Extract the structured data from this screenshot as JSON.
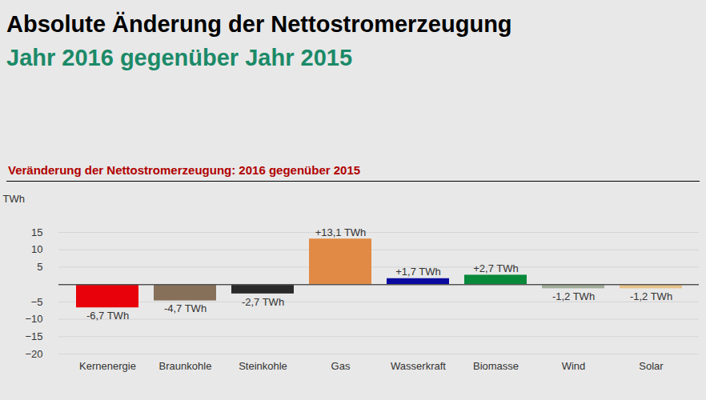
{
  "chart_data": {
    "type": "bar",
    "title": "Absolute Änderung der Nettostromerzeugung",
    "subtitle": "Jahr 2016 gegenüber Jahr 2015",
    "plot_title": "Veränderung der Nettostromerzeugung: 2016 gegenüber 2015",
    "y_label": "TWh",
    "categories": [
      "Kernenergie",
      "Braunkohle",
      "Steinkohle",
      "Gas",
      "Wasserkraft",
      "Biomasse",
      "Wind",
      "Solar"
    ],
    "values": [
      -6.7,
      -4.7,
      -2.7,
      13.1,
      1.7,
      2.7,
      -1.2,
      -1.2
    ],
    "value_labels": [
      "-6,7 TWh",
      "-4,7 TWh",
      "-2,7 TWh",
      "+13,1 TWh",
      "+1,7 TWh",
      "+2,7 TWh",
      "-1,2 TWh",
      "-1,2 TWh"
    ],
    "colors": [
      "#e8000b",
      "#86705a",
      "#2a2a2a",
      "#e08a45",
      "#0a0aa0",
      "#08893a",
      "#a2ae9a",
      "#e8c48c"
    ],
    "ylim": [
      -20,
      15
    ],
    "yticks": [
      -20,
      -15,
      -10,
      -5,
      5,
      10,
      15
    ],
    "grid": true,
    "data_labels": true
  }
}
